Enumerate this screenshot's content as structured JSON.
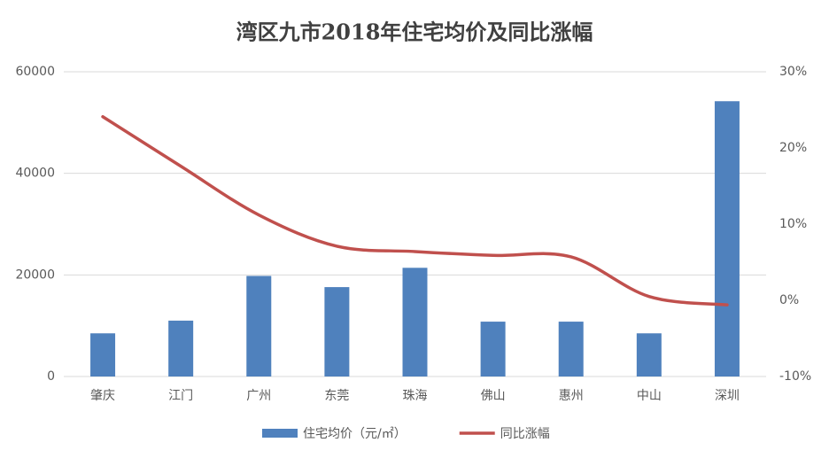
{
  "chart_data": {
    "type": "bar-line",
    "title": "湾区九市2018年住宅均价及同比涨幅",
    "categories": [
      "肇庆",
      "江门",
      "广州",
      "东莞",
      "珠海",
      "佛山",
      "惠州",
      "中山",
      "深圳"
    ],
    "series": [
      {
        "name": "住宅均价（元/㎡）",
        "color": "#4f81bd",
        "type": "bar",
        "values": [
          8500,
          11000,
          19800,
          17600,
          21400,
          10800,
          10800,
          8500,
          54200
        ]
      },
      {
        "name": "同比涨幅",
        "color": "#c0504d",
        "type": "line",
        "axis": "y2",
        "values": [
          24.1,
          17.6,
          11.2,
          7.1,
          6.4,
          5.9,
          5.7,
          0.5,
          -0.6
        ]
      }
    ],
    "ylim": [
      0,
      60000
    ],
    "yticks": [
      0,
      20000,
      40000,
      60000
    ],
    "y2lim": [
      -10,
      30
    ],
    "y2ticks": [
      {
        "value": -10,
        "label": "-10%"
      },
      {
        "value": 0,
        "label": "0%"
      },
      {
        "value": 10,
        "label": "10%"
      },
      {
        "value": 20,
        "label": "20%"
      },
      {
        "value": 30,
        "label": "30%"
      }
    ],
    "grid": true,
    "legend": "bottom"
  }
}
